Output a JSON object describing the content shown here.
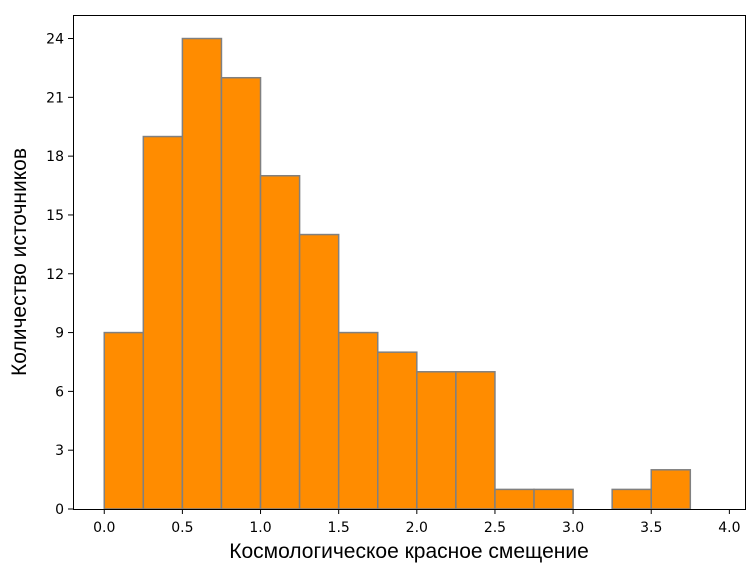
{
  "chart_data": {
    "type": "bar",
    "title": "",
    "xlabel": "Космологическое красное смещение",
    "ylabel": "Количество источников",
    "bin_width": 0.25,
    "bins": [
      {
        "start": 0.0,
        "end": 0.25,
        "count": 9
      },
      {
        "start": 0.25,
        "end": 0.5,
        "count": 19
      },
      {
        "start": 0.5,
        "end": 0.75,
        "count": 24
      },
      {
        "start": 0.75,
        "end": 1.0,
        "count": 22
      },
      {
        "start": 1.0,
        "end": 1.25,
        "count": 17
      },
      {
        "start": 1.25,
        "end": 1.5,
        "count": 14
      },
      {
        "start": 1.5,
        "end": 1.75,
        "count": 9
      },
      {
        "start": 1.75,
        "end": 2.0,
        "count": 8
      },
      {
        "start": 2.0,
        "end": 2.25,
        "count": 7
      },
      {
        "start": 2.25,
        "end": 2.5,
        "count": 7
      },
      {
        "start": 2.5,
        "end": 2.75,
        "count": 1
      },
      {
        "start": 2.75,
        "end": 3.0,
        "count": 1
      },
      {
        "start": 3.0,
        "end": 3.25,
        "count": 0
      },
      {
        "start": 3.25,
        "end": 3.5,
        "count": 1
      },
      {
        "start": 3.5,
        "end": 3.75,
        "count": 2
      }
    ],
    "xlim": [
      -0.2,
      4.1
    ],
    "ylim": [
      0,
      25.2
    ],
    "xticks": [
      {
        "value": 0.0,
        "label": "0.0"
      },
      {
        "value": 0.5,
        "label": "0.5"
      },
      {
        "value": 1.0,
        "label": "1.0"
      },
      {
        "value": 1.5,
        "label": "1.5"
      },
      {
        "value": 2.0,
        "label": "2.0"
      },
      {
        "value": 2.5,
        "label": "2.5"
      },
      {
        "value": 3.0,
        "label": "3.0"
      },
      {
        "value": 3.5,
        "label": "3.5"
      },
      {
        "value": 4.0,
        "label": "4.0"
      }
    ],
    "yticks": [
      {
        "value": 0,
        "label": "0"
      },
      {
        "value": 3,
        "label": "3"
      },
      {
        "value": 6,
        "label": "6"
      },
      {
        "value": 9,
        "label": "9"
      },
      {
        "value": 12,
        "label": "12"
      },
      {
        "value": 15,
        "label": "15"
      },
      {
        "value": 18,
        "label": "18"
      },
      {
        "value": 21,
        "label": "21"
      },
      {
        "value": 24,
        "label": "24"
      }
    ],
    "grid": false,
    "legend": "none",
    "bar_color": "#ff8c00",
    "bar_edge_color": "#808080"
  }
}
